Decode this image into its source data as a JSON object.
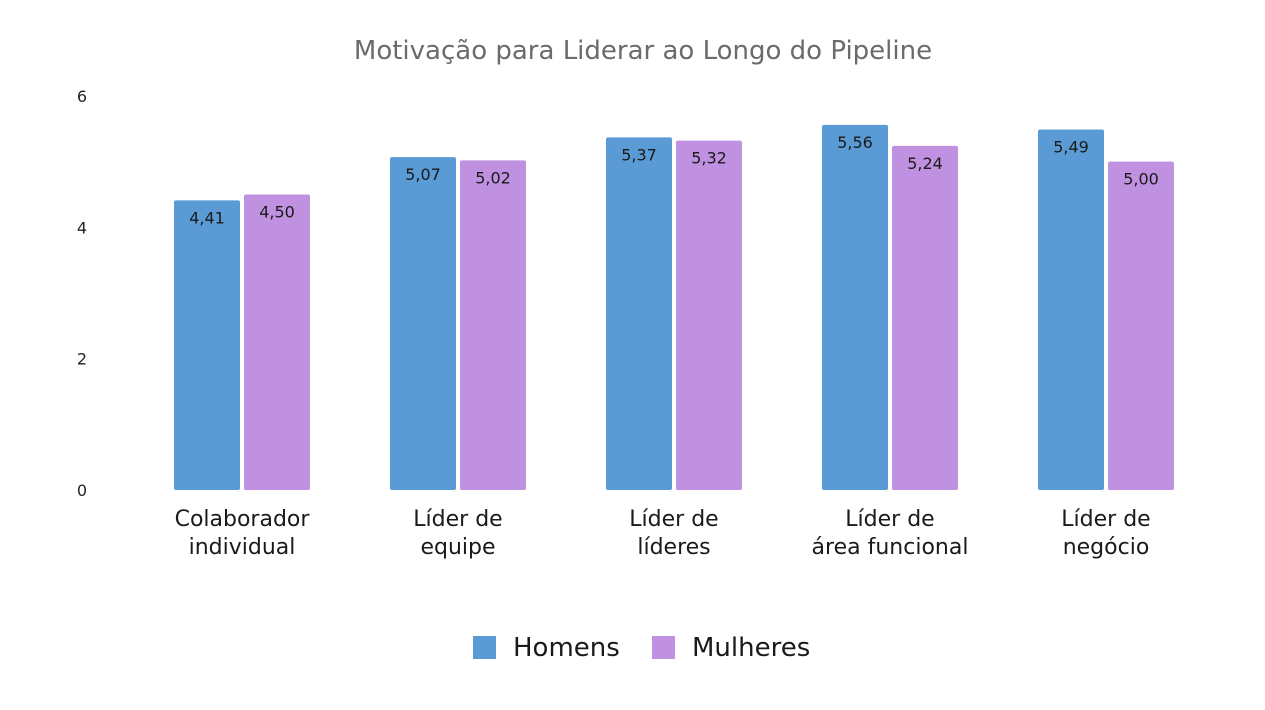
{
  "chart_data": {
    "type": "bar",
    "title": "Motivação para Liderar ao Longo do Pipeline",
    "xlabel": "",
    "ylabel": "",
    "ylim": [
      0,
      6
    ],
    "yticks": [
      "0",
      "2",
      "4",
      "6"
    ],
    "ytick_values": [
      0,
      2,
      4,
      6
    ],
    "grid": false,
    "legend_position": "bottom-center",
    "categories": [
      [
        "Colaborador",
        "individual"
      ],
      [
        "Líder de",
        "equipe"
      ],
      [
        "Líder de",
        "líderes"
      ],
      [
        "Líder de",
        "área funcional"
      ],
      [
        "Líder de",
        "negócio"
      ]
    ],
    "series": [
      {
        "name": "Homens",
        "color": "#5b9bd5",
        "values": [
          4.41,
          5.07,
          5.37,
          5.56,
          5.49
        ],
        "labels": [
          "4,41",
          "5,07",
          "5,37",
          "5,56",
          "5,49"
        ]
      },
      {
        "name": "Mulheres",
        "color": "#bf91e0",
        "values": [
          4.5,
          5.02,
          5.32,
          5.24,
          5.0
        ],
        "labels": [
          "4,50",
          "5,02",
          "5,32",
          "5,24",
          "5,00"
        ]
      }
    ]
  }
}
